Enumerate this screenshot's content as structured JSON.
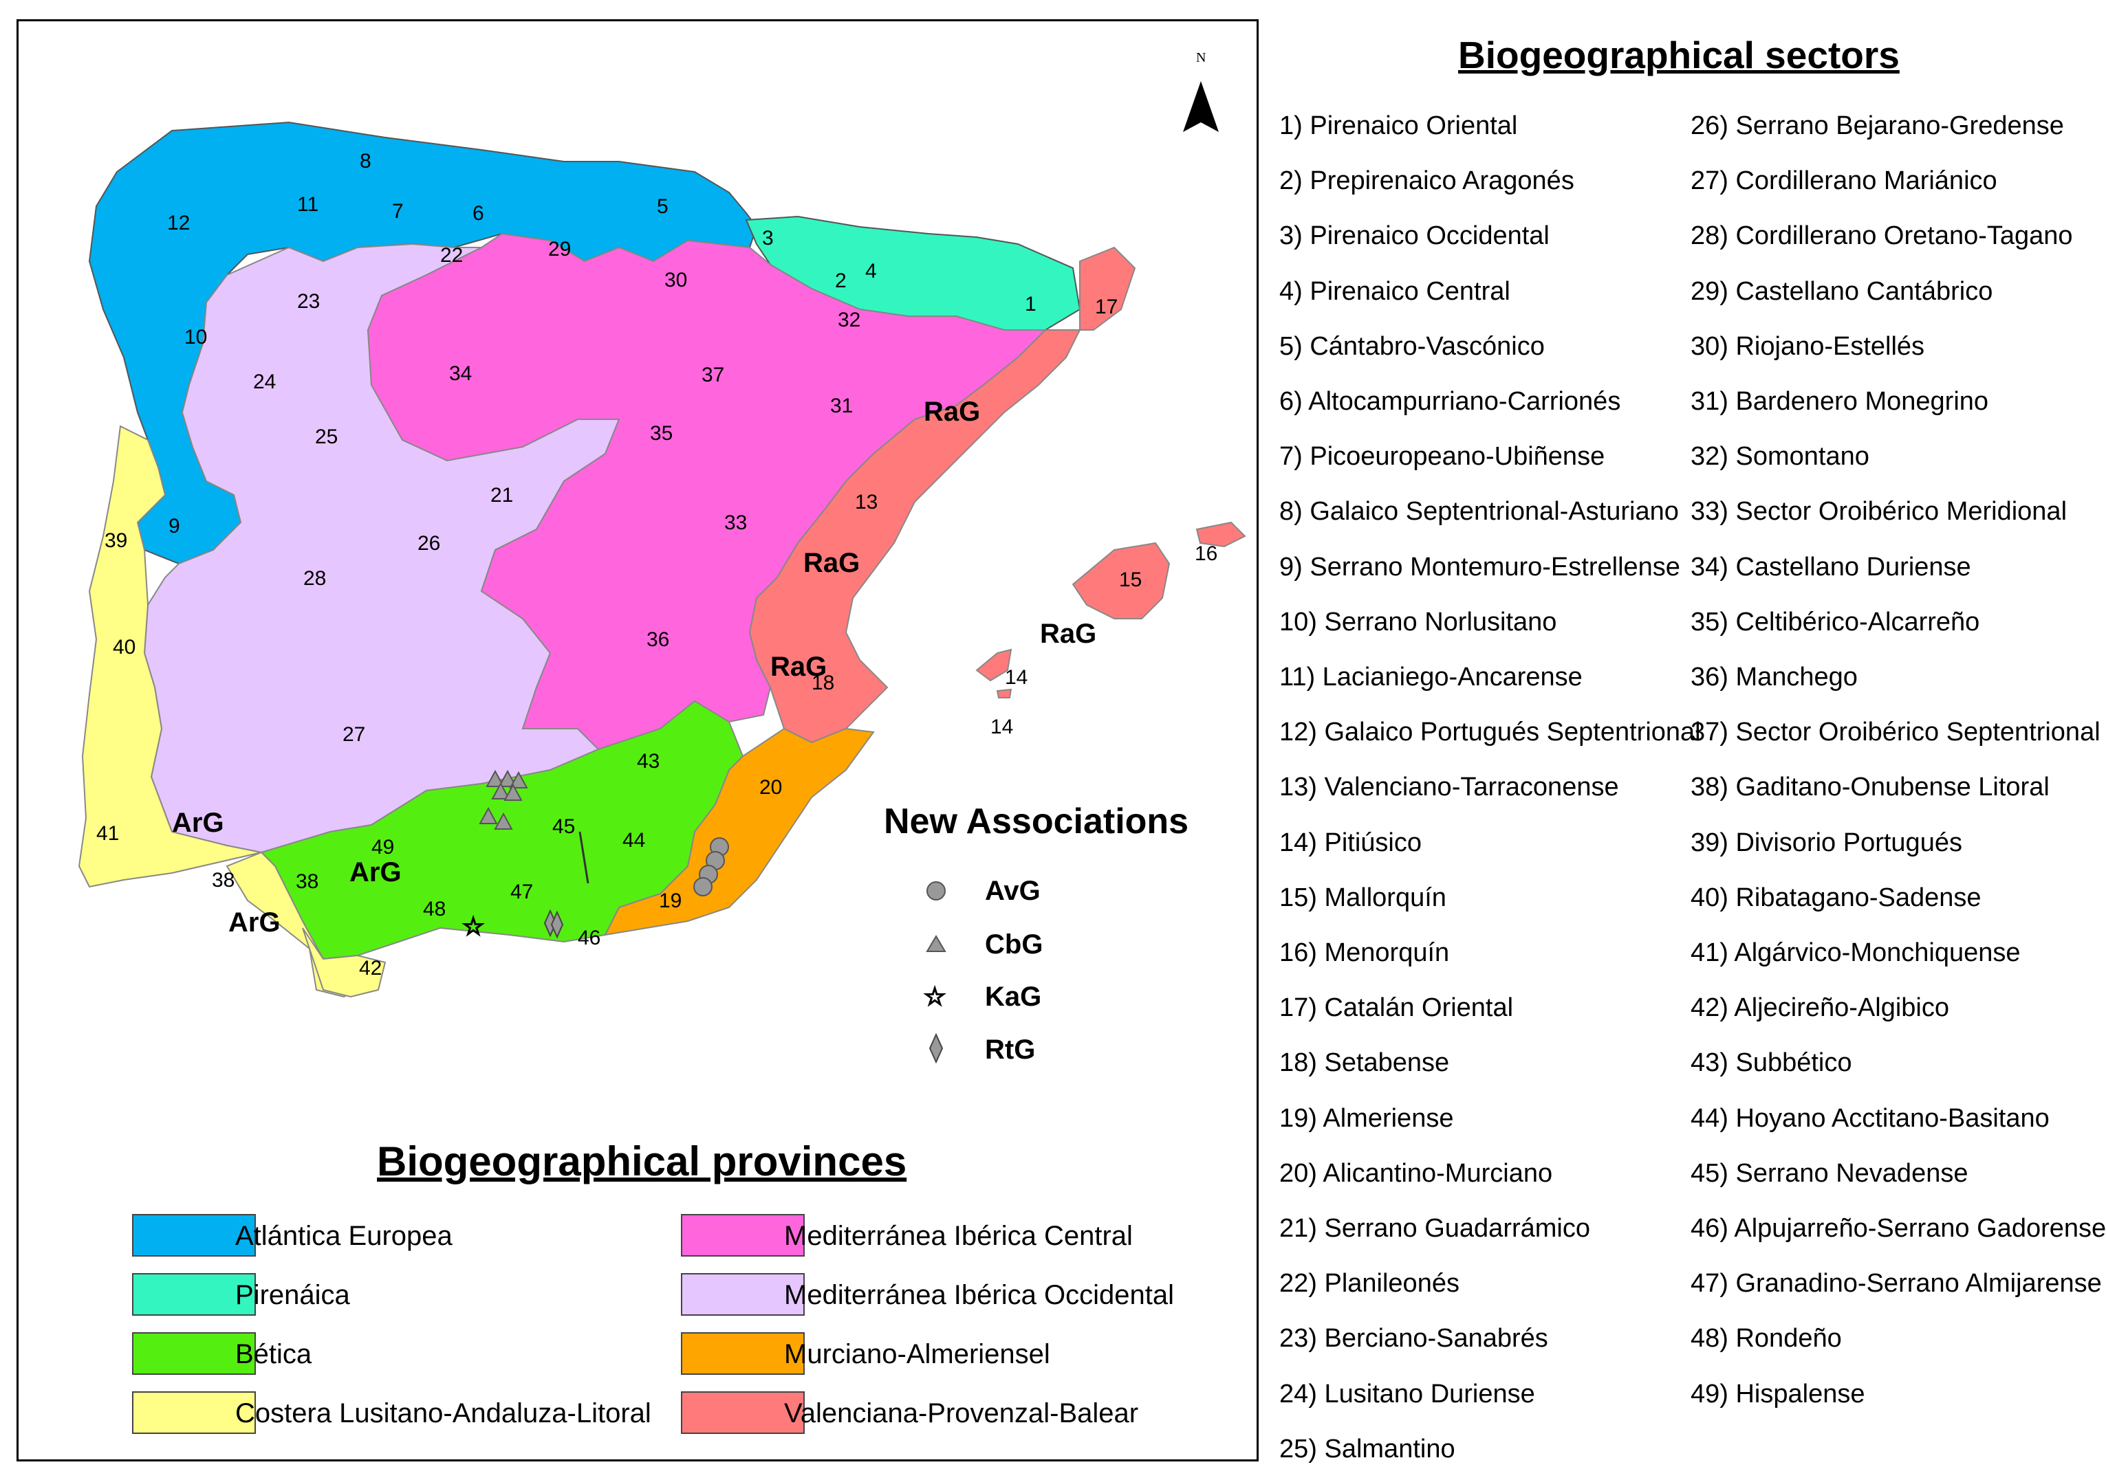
{
  "map": {
    "north_label": "N",
    "sector_numbers": [
      "1",
      "2",
      "3",
      "4",
      "5",
      "6",
      "7",
      "8",
      "10",
      "11",
      "12",
      "13",
      "14",
      "14",
      "15",
      "16",
      "17",
      "18",
      "19",
      "20",
      "21",
      "22",
      "23",
      "24",
      "25",
      "26",
      "27",
      "28",
      "29",
      "30",
      "31",
      "32",
      "33",
      "34",
      "35",
      "36",
      "37",
      "38",
      "38",
      "39",
      "40",
      "41",
      "42",
      "43",
      "44",
      "45",
      "46",
      "47",
      "48",
      "49",
      "9"
    ],
    "group_labels": [
      "RaG",
      "RaG",
      "RaG",
      "RaG",
      "ArG",
      "ArG",
      "ArG"
    ]
  },
  "new_associations": {
    "title": "New Associations",
    "items": [
      {
        "label": "AvG",
        "symbol": "circle-icon"
      },
      {
        "label": "CbG",
        "symbol": "triangle-icon"
      },
      {
        "label": "KaG",
        "symbol": "star-icon"
      },
      {
        "label": "RtG",
        "symbol": "diamond-icon"
      }
    ]
  },
  "provinces": {
    "title": "Biogeographical provinces",
    "items": [
      {
        "label": "Atlántica Europea",
        "color": "#00b0f0"
      },
      {
        "label": "Pirenáica",
        "color": "#33f5c0"
      },
      {
        "label": "Bética",
        "color": "#55ee11"
      },
      {
        "label": "Costera Lusitano-Andaluza-Litoral",
        "color": "#ffff88"
      },
      {
        "label": "Mediterránea Ibérica Central",
        "color": "#ff66dd"
      },
      {
        "label": "Mediterránea Ibérica Occidental",
        "color": "#e6c6ff"
      },
      {
        "label": "Murciano-Almeriensel",
        "color": "#ffa500"
      },
      {
        "label": "Valenciana-Provenzal-Balear",
        "color": "#ff7b7b"
      }
    ]
  },
  "sectors": {
    "title": "Biogeographical sectors",
    "col1": [
      "1) Pirenaico Oriental",
      "2) Prepirenaico Aragonés",
      "3) Pirenaico Occidental",
      "4) Pirenaico Central",
      "5) Cántabro-Vascónico",
      "6) Altocampurriano-Carrionés",
      "7) Picoeuropeano-Ubiñense",
      "8) Galaico Septentrional-Asturiano",
      "9) Serrano Montemuro-Estrellense",
      "10) Serrano Norlusitano",
      "11) Lacianiego-Ancarense",
      "12) Galaico Portugués Septentrional",
      "13) Valenciano-Tarraconense",
      "14) Pitiúsico",
      "15) Mallorquín",
      "16) Menorquín",
      "17) Catalán Oriental",
      "18) Setabense",
      "19) Almeriense",
      "20) Alicantino-Murciano",
      "21) Serrano Guadarrámico",
      "22) Planileonés",
      "23) Berciano-Sanabrés",
      "24) Lusitano Duriense",
      "25) Salmantino"
    ],
    "col2": [
      "26) Serrano Bejarano-Gredense",
      "27) Cordillerano Mariánico",
      "28) Cordillerano Oretano-Tagano",
      "29) Castellano Cantábrico",
      "30) Riojano-Estellés",
      "31) Bardenero Monegrino",
      "32) Somontano",
      "33) Sector Oroibérico Meridional",
      "34) Castellano Duriense",
      "35) Celtibérico-Alcarreño",
      "36) Manchego",
      "37) Sector Oroibérico Septentrional",
      "38) Gaditano-Onubense Litoral",
      "39) Divisorio Portugués",
      "40) Ribatagano-Sadense",
      "41) Algárvico-Monchiquense",
      "42) Aljecireño-Algibico",
      "43) Subbético",
      "44) Hoyano Acctitano-Basitano",
      "45) Serrano Nevadense",
      "46) Alpujarreño-Serrano Gadorense",
      "47) Granadino-Serrano Almijarense",
      "48) Rondeño",
      "49) Hispalense"
    ]
  }
}
